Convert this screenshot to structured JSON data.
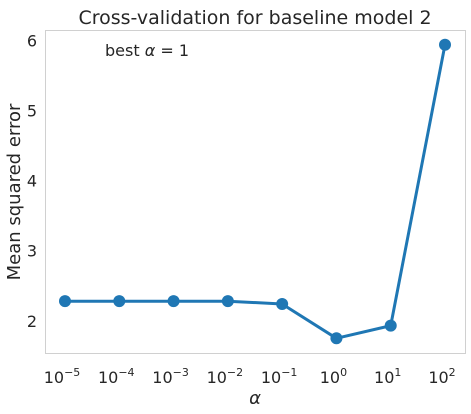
{
  "chart_data": {
    "type": "line",
    "title": "Cross-validation for baseline model 2",
    "xlabel": "α",
    "ylabel": "Mean squared error",
    "x_scale": "log",
    "x": [
      1e-05,
      0.0001,
      0.001,
      0.01,
      0.1,
      1,
      10,
      100
    ],
    "x_tick_labels": [
      {
        "base": "10",
        "exp": "−5"
      },
      {
        "base": "10",
        "exp": "−4"
      },
      {
        "base": "10",
        "exp": "−3"
      },
      {
        "base": "10",
        "exp": "−2"
      },
      {
        "base": "10",
        "exp": "−1"
      },
      {
        "base": "10",
        "exp": "0"
      },
      {
        "base": "10",
        "exp": "1"
      },
      {
        "base": "10",
        "exp": "2"
      }
    ],
    "series": [
      {
        "values": [
          2.28,
          2.28,
          2.28,
          2.28,
          2.24,
          1.75,
          1.93,
          5.94
        ],
        "color": "#1f77b4"
      }
    ],
    "y_ticks": [
      "2",
      "3",
      "4",
      "5",
      "6"
    ],
    "ylim": [
      1.54,
      6.15
    ],
    "grid": false,
    "annotation": {
      "prefix": "best ",
      "symbol": "α",
      "suffix": " = 1"
    }
  }
}
